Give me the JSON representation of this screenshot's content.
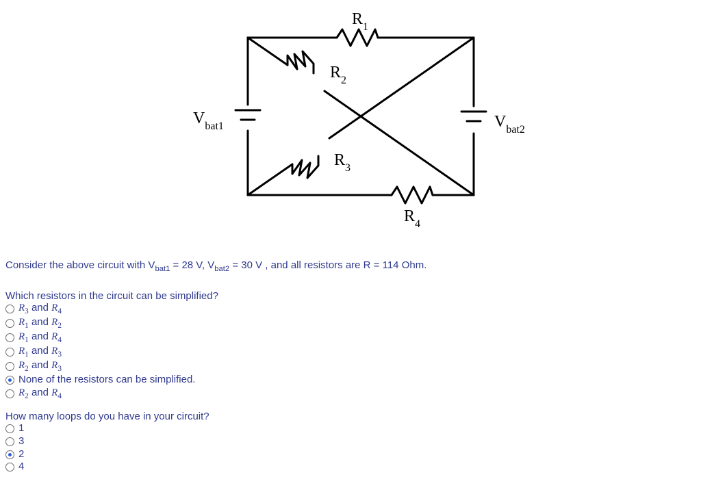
{
  "circuit": {
    "labels": {
      "vbat1": "V",
      "vbat1_sub": "bat1",
      "vbat2": "V",
      "vbat2_sub": "bat2",
      "r1": "R",
      "r1_sub": "1",
      "r2": "R",
      "r2_sub": "2",
      "r3": "R",
      "r3_sub": "3",
      "r4": "R",
      "r4_sub": "4"
    },
    "stroke": "#000000",
    "stroke_width": 3,
    "label_fontsize": 22
  },
  "prompt_prefix": "Consider the above circuit with V",
  "prompt_sub1": "bat1",
  "prompt_mid1": " = 28 V, V",
  "prompt_sub2": "bat2",
  "prompt_mid2": " = 30 V , and all resistors are R = 114 Ohm.",
  "q1": {
    "text": "Which resistors in the circuit can be simplified?",
    "options": [
      {
        "pre": "R",
        "sub": "3",
        "mid": " and ",
        "pre2": "R",
        "sub2": "4",
        "selected": false,
        "math": true
      },
      {
        "pre": "R",
        "sub": "1",
        "mid": " and ",
        "pre2": "R",
        "sub2": "2",
        "selected": false,
        "math": true
      },
      {
        "pre": "R",
        "sub": "1",
        "mid": " and ",
        "pre2": "R",
        "sub2": "4",
        "selected": false,
        "math": true
      },
      {
        "pre": "R",
        "sub": "1",
        "mid": " and ",
        "pre2": "R",
        "sub2": "3",
        "selected": false,
        "math": true
      },
      {
        "pre": "R",
        "sub": "2",
        "mid": " and ",
        "pre2": "R",
        "sub2": "3",
        "selected": false,
        "math": true
      },
      {
        "plain": "None of the resistors can be simplified.",
        "selected": true,
        "math": false
      },
      {
        "pre": "R",
        "sub": "2",
        "mid": " and ",
        "pre2": "R",
        "sub2": "4",
        "selected": false,
        "math": true
      }
    ]
  },
  "q2": {
    "text": "How many loops do you have in your circuit?",
    "options": [
      {
        "plain": "1",
        "selected": false
      },
      {
        "plain": "3",
        "selected": false
      },
      {
        "plain": "2",
        "selected": true
      },
      {
        "plain": "4",
        "selected": false
      }
    ]
  }
}
